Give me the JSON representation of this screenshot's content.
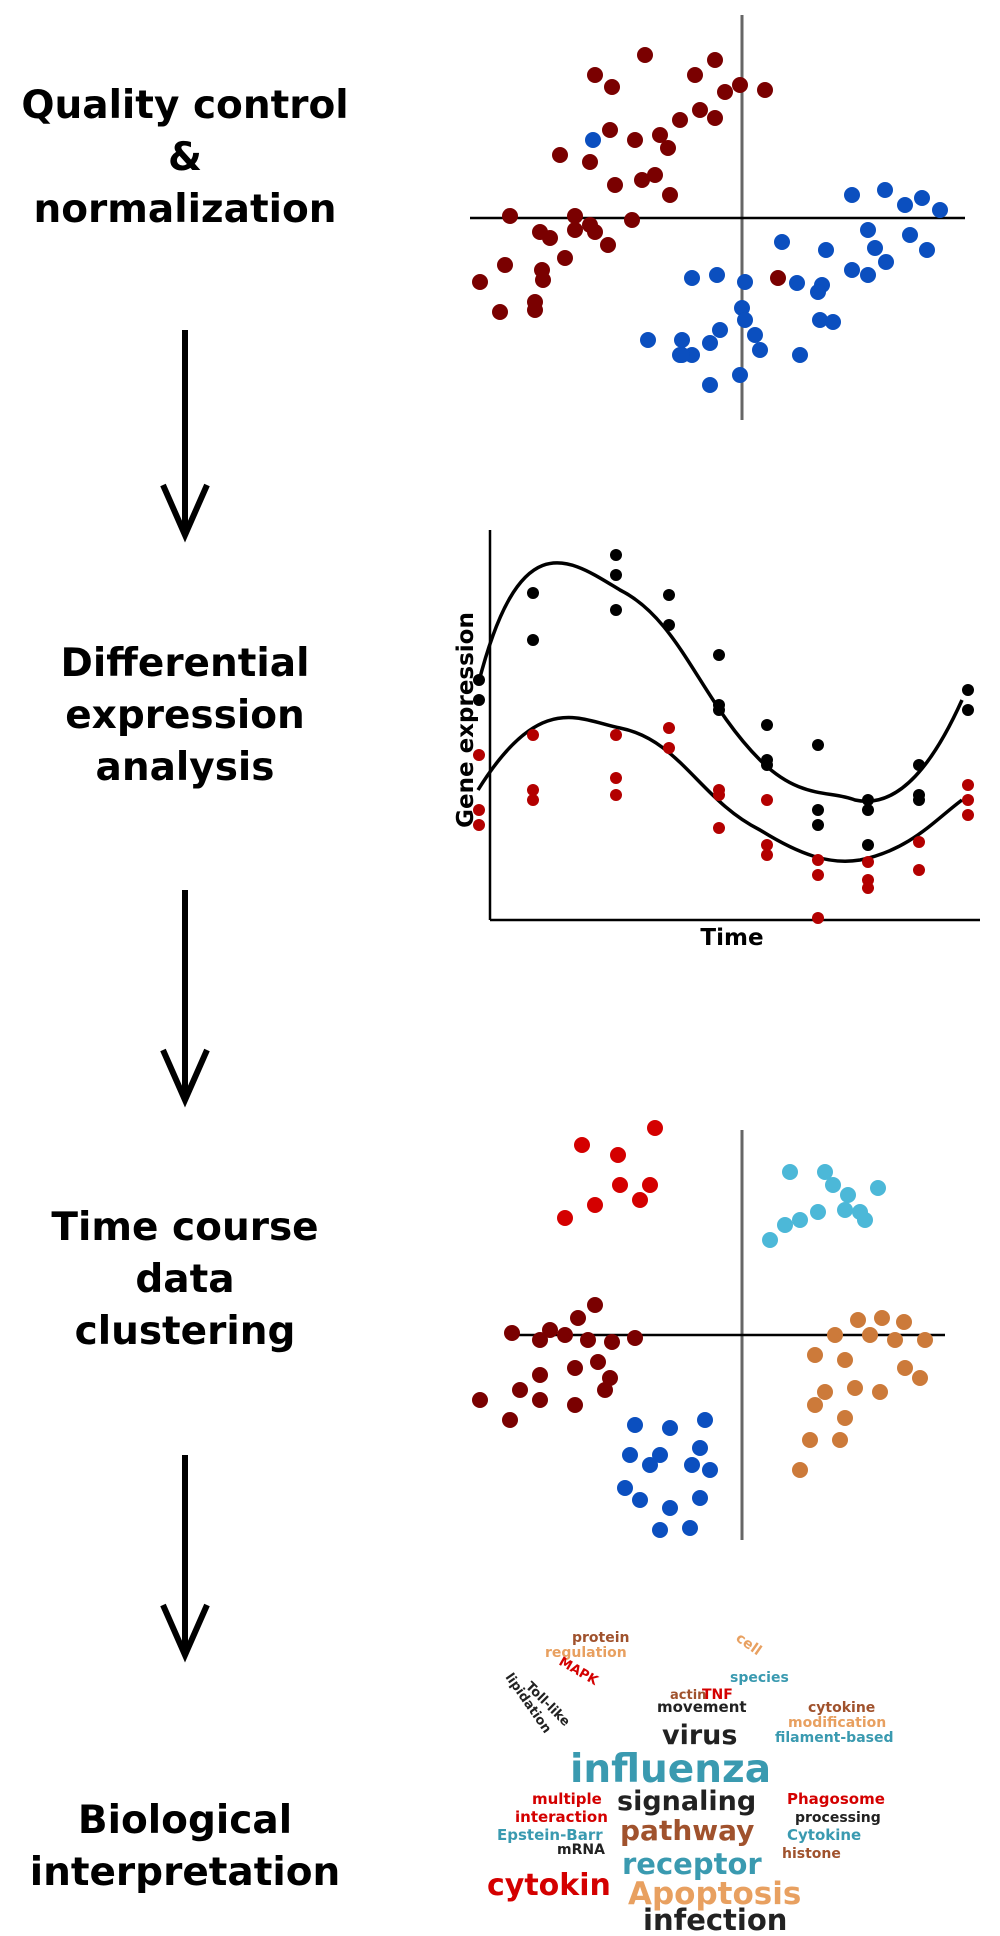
{
  "steps": [
    {
      "lines": [
        "Quality control",
        "&",
        "normalization"
      ]
    },
    {
      "lines": [
        "Differential",
        "expression",
        "analysis"
      ]
    },
    {
      "lines": [
        "Time course",
        "data",
        "clustering"
      ]
    },
    {
      "lines": [
        "Biological",
        "interpretation"
      ]
    }
  ],
  "colors": {
    "dark_red": "#7a0000",
    "blue": "#0b4fbf",
    "bright_red": "#d40000",
    "light_blue": "#4cb8d8",
    "orange": "#cc7a3a",
    "black": "#000000",
    "red_points": "#b30000"
  },
  "plot2": {
    "xlabel": "Time",
    "ylabel": "Gene expression"
  },
  "wordcloud": [
    {
      "text": "protein",
      "color": "#a0522d"
    },
    {
      "text": "regulation",
      "color": "#e8a060"
    },
    {
      "text": "MAPK",
      "color": "#d40000"
    },
    {
      "text": "Toll-like",
      "color": "#222222"
    },
    {
      "text": "lipidation",
      "color": "#222222"
    },
    {
      "text": "cell",
      "color": "#e8a060"
    },
    {
      "text": "species",
      "color": "#3a9ab0"
    },
    {
      "text": "actin",
      "color": "#a0522d"
    },
    {
      "text": "TNF",
      "color": "#d40000"
    },
    {
      "text": "movement",
      "color": "#222222"
    },
    {
      "text": "cytokine",
      "color": "#a0522d"
    },
    {
      "text": "modification",
      "color": "#e8a060"
    },
    {
      "text": "filament-based",
      "color": "#3a9ab0"
    },
    {
      "text": "virus",
      "color": "#222222"
    },
    {
      "text": "influenza",
      "color": "#3a9ab0"
    },
    {
      "text": "multiple",
      "color": "#d40000"
    },
    {
      "text": "signaling",
      "color": "#222222"
    },
    {
      "text": "Phagosome",
      "color": "#d40000"
    },
    {
      "text": "interaction",
      "color": "#d40000"
    },
    {
      "text": "processing",
      "color": "#222222"
    },
    {
      "text": "Epstein-Barr",
      "color": "#3a9ab0"
    },
    {
      "text": "pathway",
      "color": "#a0522d"
    },
    {
      "text": "Cytokine",
      "color": "#3a9ab0"
    },
    {
      "text": "mRNA",
      "color": "#222222"
    },
    {
      "text": "histone",
      "color": "#a0522d"
    },
    {
      "text": "receptor",
      "color": "#3a9ab0"
    },
    {
      "text": "cytokin",
      "color": "#d40000"
    },
    {
      "text": "Apoptosis",
      "color": "#e8a060"
    },
    {
      "text": "infection",
      "color": "#222222"
    }
  ]
}
